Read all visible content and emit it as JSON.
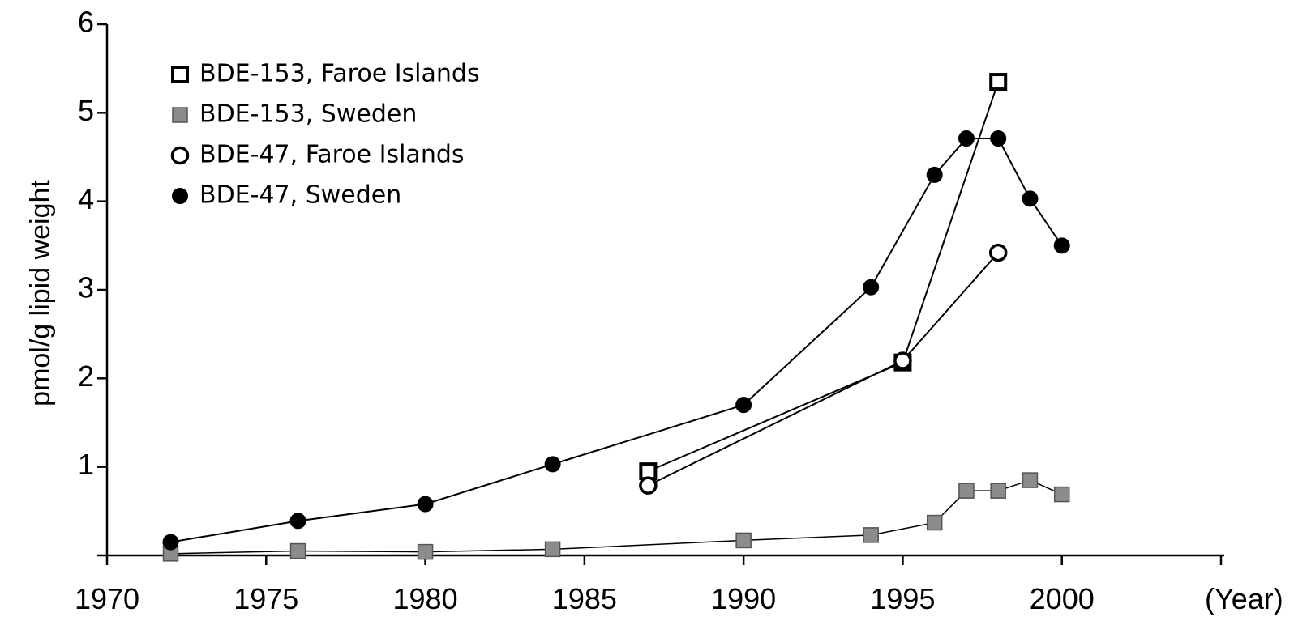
{
  "chart_data": {
    "type": "line",
    "y_label": "pmol/g lipid weight",
    "xlim": [
      1970,
      2005
    ],
    "xticks": [
      1970,
      1975,
      1980,
      1985,
      1990,
      1995,
      2000,
      {
        "value": 2005,
        "label": "(Year)"
      }
    ],
    "ylim": [
      0,
      6
    ],
    "yticks": [
      1,
      2,
      3,
      4,
      5,
      6
    ],
    "legend": "upper left",
    "series": [
      {
        "name": "BDE-153, Faroe Islands",
        "color": "#000000",
        "marker": "square-open",
        "x": [
          1987,
          1995,
          1998
        ],
        "values": [
          0.95,
          2.18,
          5.35
        ]
      },
      {
        "name": "BDE-153, Sweden",
        "color": "#8c8c8c",
        "marker": "square-filled",
        "x": [
          1972,
          1976,
          1980,
          1984,
          1990,
          1994,
          1996,
          1997,
          1998,
          1999,
          2000
        ],
        "values": [
          0.02,
          0.05,
          0.04,
          0.07,
          0.17,
          0.23,
          0.37,
          0.73,
          0.73,
          0.85,
          0.69
        ]
      },
      {
        "name": "BDE-47, Faroe Islands",
        "color": "#000000",
        "marker": "circle-open",
        "x": [
          1987,
          1995,
          1998
        ],
        "values": [
          0.79,
          2.2,
          3.42
        ]
      },
      {
        "name": "BDE-47, Sweden",
        "color": "#000000",
        "marker": "circle-filled",
        "x": [
          1972,
          1976,
          1980,
          1984,
          1990,
          1994,
          1996,
          1997,
          1998,
          1999,
          2000
        ],
        "values": [
          0.15,
          0.39,
          0.58,
          1.03,
          1.7,
          3.03,
          4.3,
          4.71,
          4.71,
          4.03,
          3.5
        ]
      }
    ]
  }
}
